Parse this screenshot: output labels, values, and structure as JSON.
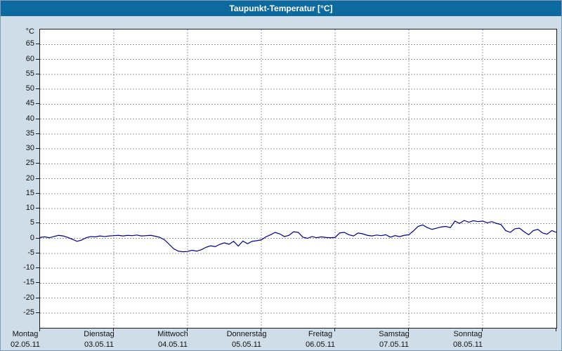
{
  "window": {
    "title": "Taupunkt-Temperatur [°C]"
  },
  "colors": {
    "titlebar_bg": "#0c6a9e",
    "titlebar_text": "#ffffff",
    "page_bg": "#cfdde9",
    "plot_bg": "#ffffff",
    "grid": "#999999",
    "line": "#00008b",
    "axis_text": "#111111"
  },
  "chart_data": {
    "type": "line",
    "title": "Taupunkt-Temperatur [°C]",
    "xlabel": "",
    "ylabel": "°C",
    "ylim": [
      -30,
      70
    ],
    "ytick_step": 5,
    "yticks": [
      65,
      60,
      55,
      50,
      45,
      40,
      35,
      30,
      25,
      20,
      15,
      10,
      5,
      0,
      -5,
      -10,
      -15,
      -20,
      -25
    ],
    "grid": "dashed",
    "legend": "none",
    "x_range_days": [
      0,
      7
    ],
    "days": [
      {
        "name": "Montag",
        "date": "02.05.11"
      },
      {
        "name": "Dienstag",
        "date": "03.05.11"
      },
      {
        "name": "Mittwoch",
        "date": "04.05.11"
      },
      {
        "name": "Donnerstag",
        "date": "05.05.11"
      },
      {
        "name": "Freitag",
        "date": "06.05.11"
      },
      {
        "name": "Samstag",
        "date": "07.05.11"
      },
      {
        "name": "Sonntag",
        "date": "08.05.11"
      }
    ],
    "series": [
      {
        "name": "Taupunkt-Temperatur",
        "unit": "°C",
        "values": [
          0.3,
          0.5,
          0.2,
          0.6,
          1.0,
          0.8,
          0.3,
          -0.3,
          -1.0,
          -0.6,
          0.2,
          0.6,
          0.5,
          0.8,
          0.6,
          0.8,
          0.9,
          1.0,
          0.8,
          1.0,
          0.9,
          1.1,
          0.8,
          0.9,
          1.0,
          0.7,
          0.3,
          -0.5,
          -2.0,
          -3.5,
          -4.3,
          -4.5,
          -4.4,
          -4.0,
          -4.3,
          -3.8,
          -3.0,
          -2.5,
          -2.8,
          -2.0,
          -1.5,
          -2.0,
          -1.0,
          -2.6,
          -0.9,
          -1.8,
          -1.0,
          -0.8,
          -0.5,
          0.5,
          1.2,
          2.0,
          1.5,
          0.6,
          1.0,
          2.2,
          2.0,
          0.4,
          0.0,
          0.6,
          0.2,
          0.5,
          0.3,
          0.2,
          0.3,
          1.8,
          2.0,
          1.2,
          0.8,
          1.8,
          1.5,
          1.0,
          0.8,
          1.1,
          0.9,
          1.2,
          0.4,
          0.9,
          0.6,
          1.0,
          1.2,
          2.5,
          4.0,
          4.5,
          3.6,
          3.0,
          3.4,
          3.8,
          4.0,
          3.6,
          5.8,
          5.0,
          6.0,
          5.4,
          5.9,
          5.6,
          5.8,
          5.2,
          5.6,
          5.0,
          4.6,
          2.6,
          2.0,
          3.2,
          3.4,
          2.2,
          1.2,
          2.6,
          3.0,
          1.8,
          1.4,
          2.6,
          2.0
        ]
      }
    ]
  }
}
